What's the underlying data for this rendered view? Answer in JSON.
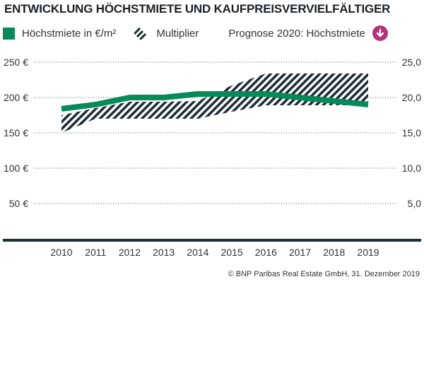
{
  "chart_data": {
    "type": "line",
    "title": "ENTWICKLUNG HÖCHSTMIETE UND KAUFPREISVERVIELFÄLTIGER",
    "categories": [
      "2010",
      "2011",
      "2012",
      "2013",
      "2014",
      "2015",
      "2016",
      "2017",
      "2018",
      "2019"
    ],
    "series": [
      {
        "name": "Höchstmiete in €/m²",
        "axis": "left",
        "type": "line",
        "color": "#078a59",
        "values": [
          184,
          190,
          200,
          200,
          205,
          205,
          205,
          200,
          195,
          190
        ]
      },
      {
        "name": "Multiplier",
        "axis": "right",
        "type": "range-area",
        "color": "#1b2a35",
        "pattern": "diagonal-hatch",
        "low": [
          15.0,
          17.0,
          17.0,
          17.0,
          17.0,
          18.0,
          18.9,
          18.9,
          18.9,
          18.9
        ],
        "high": [
          17.5,
          18.5,
          19.4,
          19.4,
          19.5,
          21.7,
          23.4,
          23.4,
          23.4,
          23.4
        ]
      }
    ],
    "y_left": {
      "ticks": [
        "50 €",
        "100 €",
        "150 €",
        "200 €",
        "250 €"
      ],
      "values": [
        50,
        100,
        150,
        200,
        250
      ],
      "range": [
        0,
        250
      ]
    },
    "y_right": {
      "ticks": [
        "5,0",
        "10,0",
        "15,0",
        "20,0",
        "25,0"
      ],
      "values": [
        5,
        10,
        15,
        20,
        25
      ],
      "range": [
        0,
        25
      ]
    },
    "grid": "dotted horizontal",
    "legend": {
      "position": "top",
      "items": [
        "Höchstmiete in €/m²",
        "Multiplier"
      ],
      "forecast_label": "Prognose 2020: Höchstmiete",
      "forecast_icon": "arrow-down-circle-icon",
      "forecast_color": "#b4337a"
    }
  },
  "source": "© BNP Paribas Real Estate GmbH, 31. Dezember 2019"
}
